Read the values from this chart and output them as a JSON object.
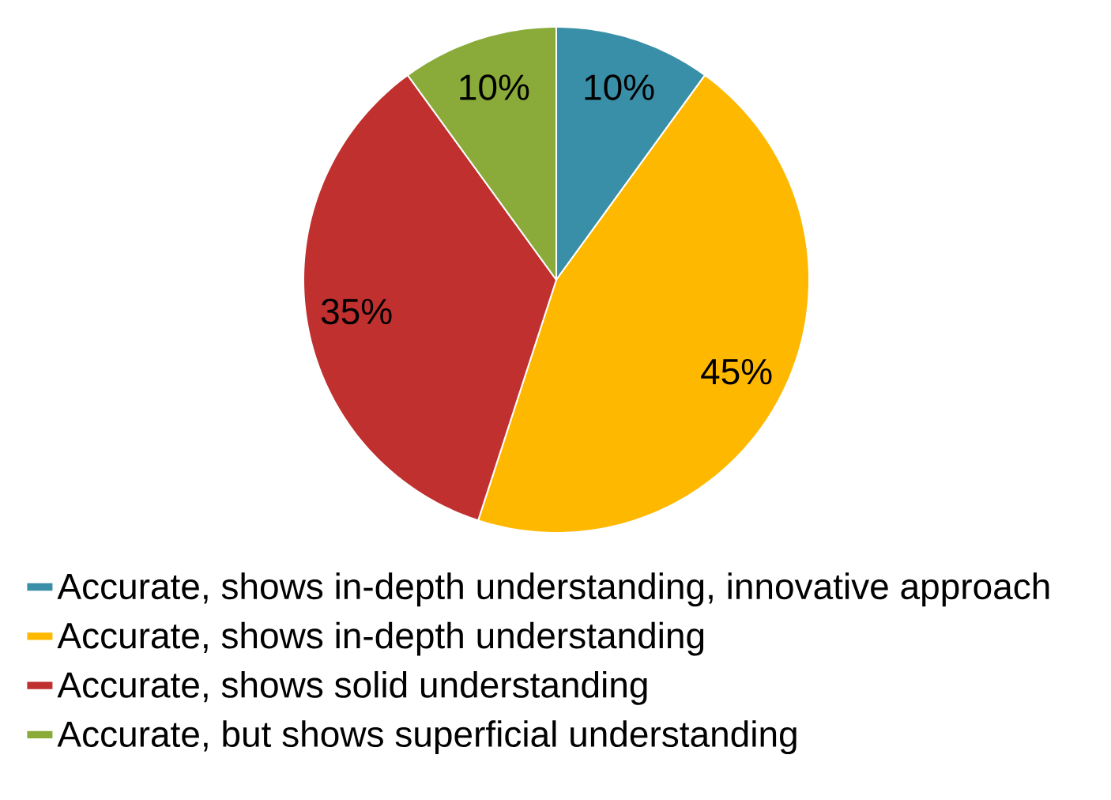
{
  "chart_data": {
    "type": "pie",
    "categories": [
      "Accurate, shows in-depth understanding, innovative approach",
      "Accurate, shows in-depth understanding",
      "Accurate, shows solid understanding",
      "Accurate, but shows superficial understanding"
    ],
    "values": [
      10,
      45,
      35,
      10
    ],
    "colors": [
      "#3a8fa8",
      "#ffb800",
      "#c0302f",
      "#8aab3a"
    ],
    "value_labels": [
      "10%",
      "45%",
      "35%",
      "10%"
    ],
    "legend": "bottom"
  }
}
